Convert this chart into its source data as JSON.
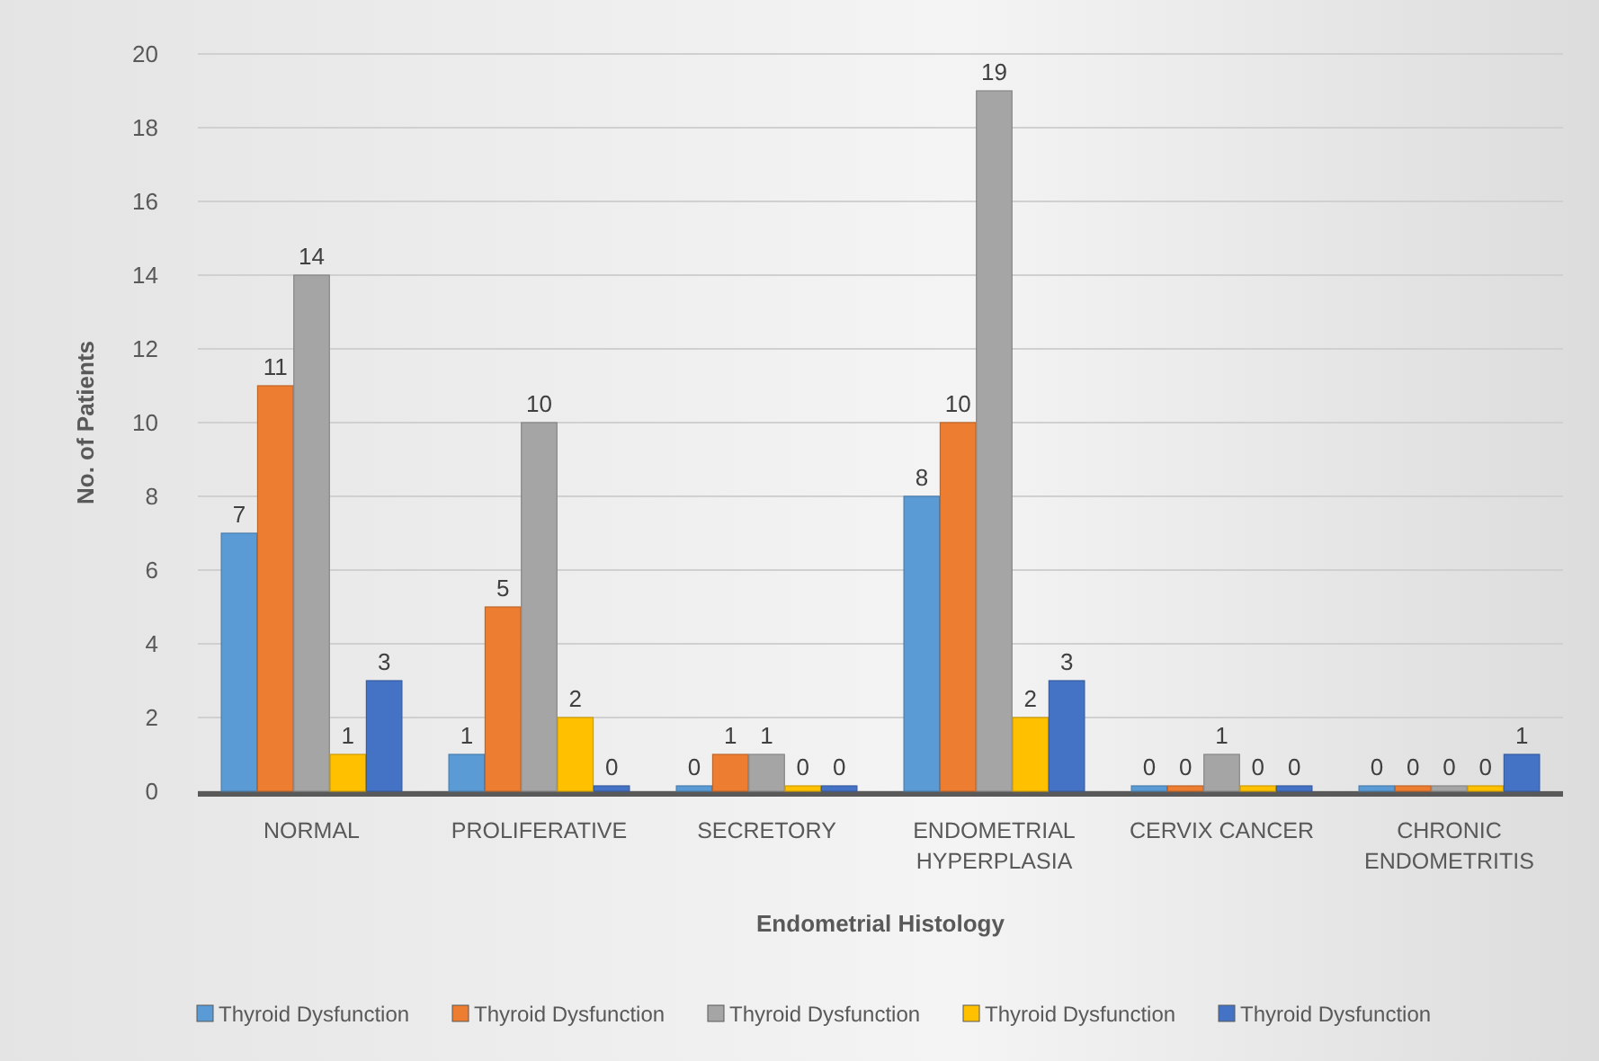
{
  "chart_data": {
    "type": "bar",
    "xlabel": "Endometrial Histology",
    "ylabel": "No. of Patients",
    "categories": [
      "NORMAL",
      "PROLIFERATIVE",
      "SECRETORY",
      "ENDOMETRIAL HYPERPLASIA",
      "CERVIX CANCER",
      "CHRONIC ENDOMETRITIS"
    ],
    "series": [
      {
        "name": "Thyroid Dysfunction",
        "color": "#5b9bd5",
        "values": [
          7,
          1,
          0,
          8,
          0,
          0
        ]
      },
      {
        "name": "Thyroid Dysfunction",
        "color": "#ed7d31",
        "values": [
          11,
          5,
          1,
          10,
          0,
          0
        ]
      },
      {
        "name": "Thyroid Dysfunction",
        "color": "#a5a5a5",
        "values": [
          14,
          10,
          1,
          19,
          1,
          0
        ]
      },
      {
        "name": "Thyroid Dysfunction",
        "color": "#ffc000",
        "values": [
          1,
          2,
          0,
          2,
          0,
          0
        ]
      },
      {
        "name": "Thyroid Dysfunction",
        "color": "#4472c4",
        "values": [
          3,
          0,
          0,
          3,
          0,
          1
        ]
      }
    ],
    "ylim": [
      0,
      20
    ],
    "yticks": [
      0,
      2,
      4,
      6,
      8,
      10,
      12,
      14,
      16,
      18,
      20
    ],
    "grid": "y",
    "legend": "bottom",
    "data_labels": true
  }
}
